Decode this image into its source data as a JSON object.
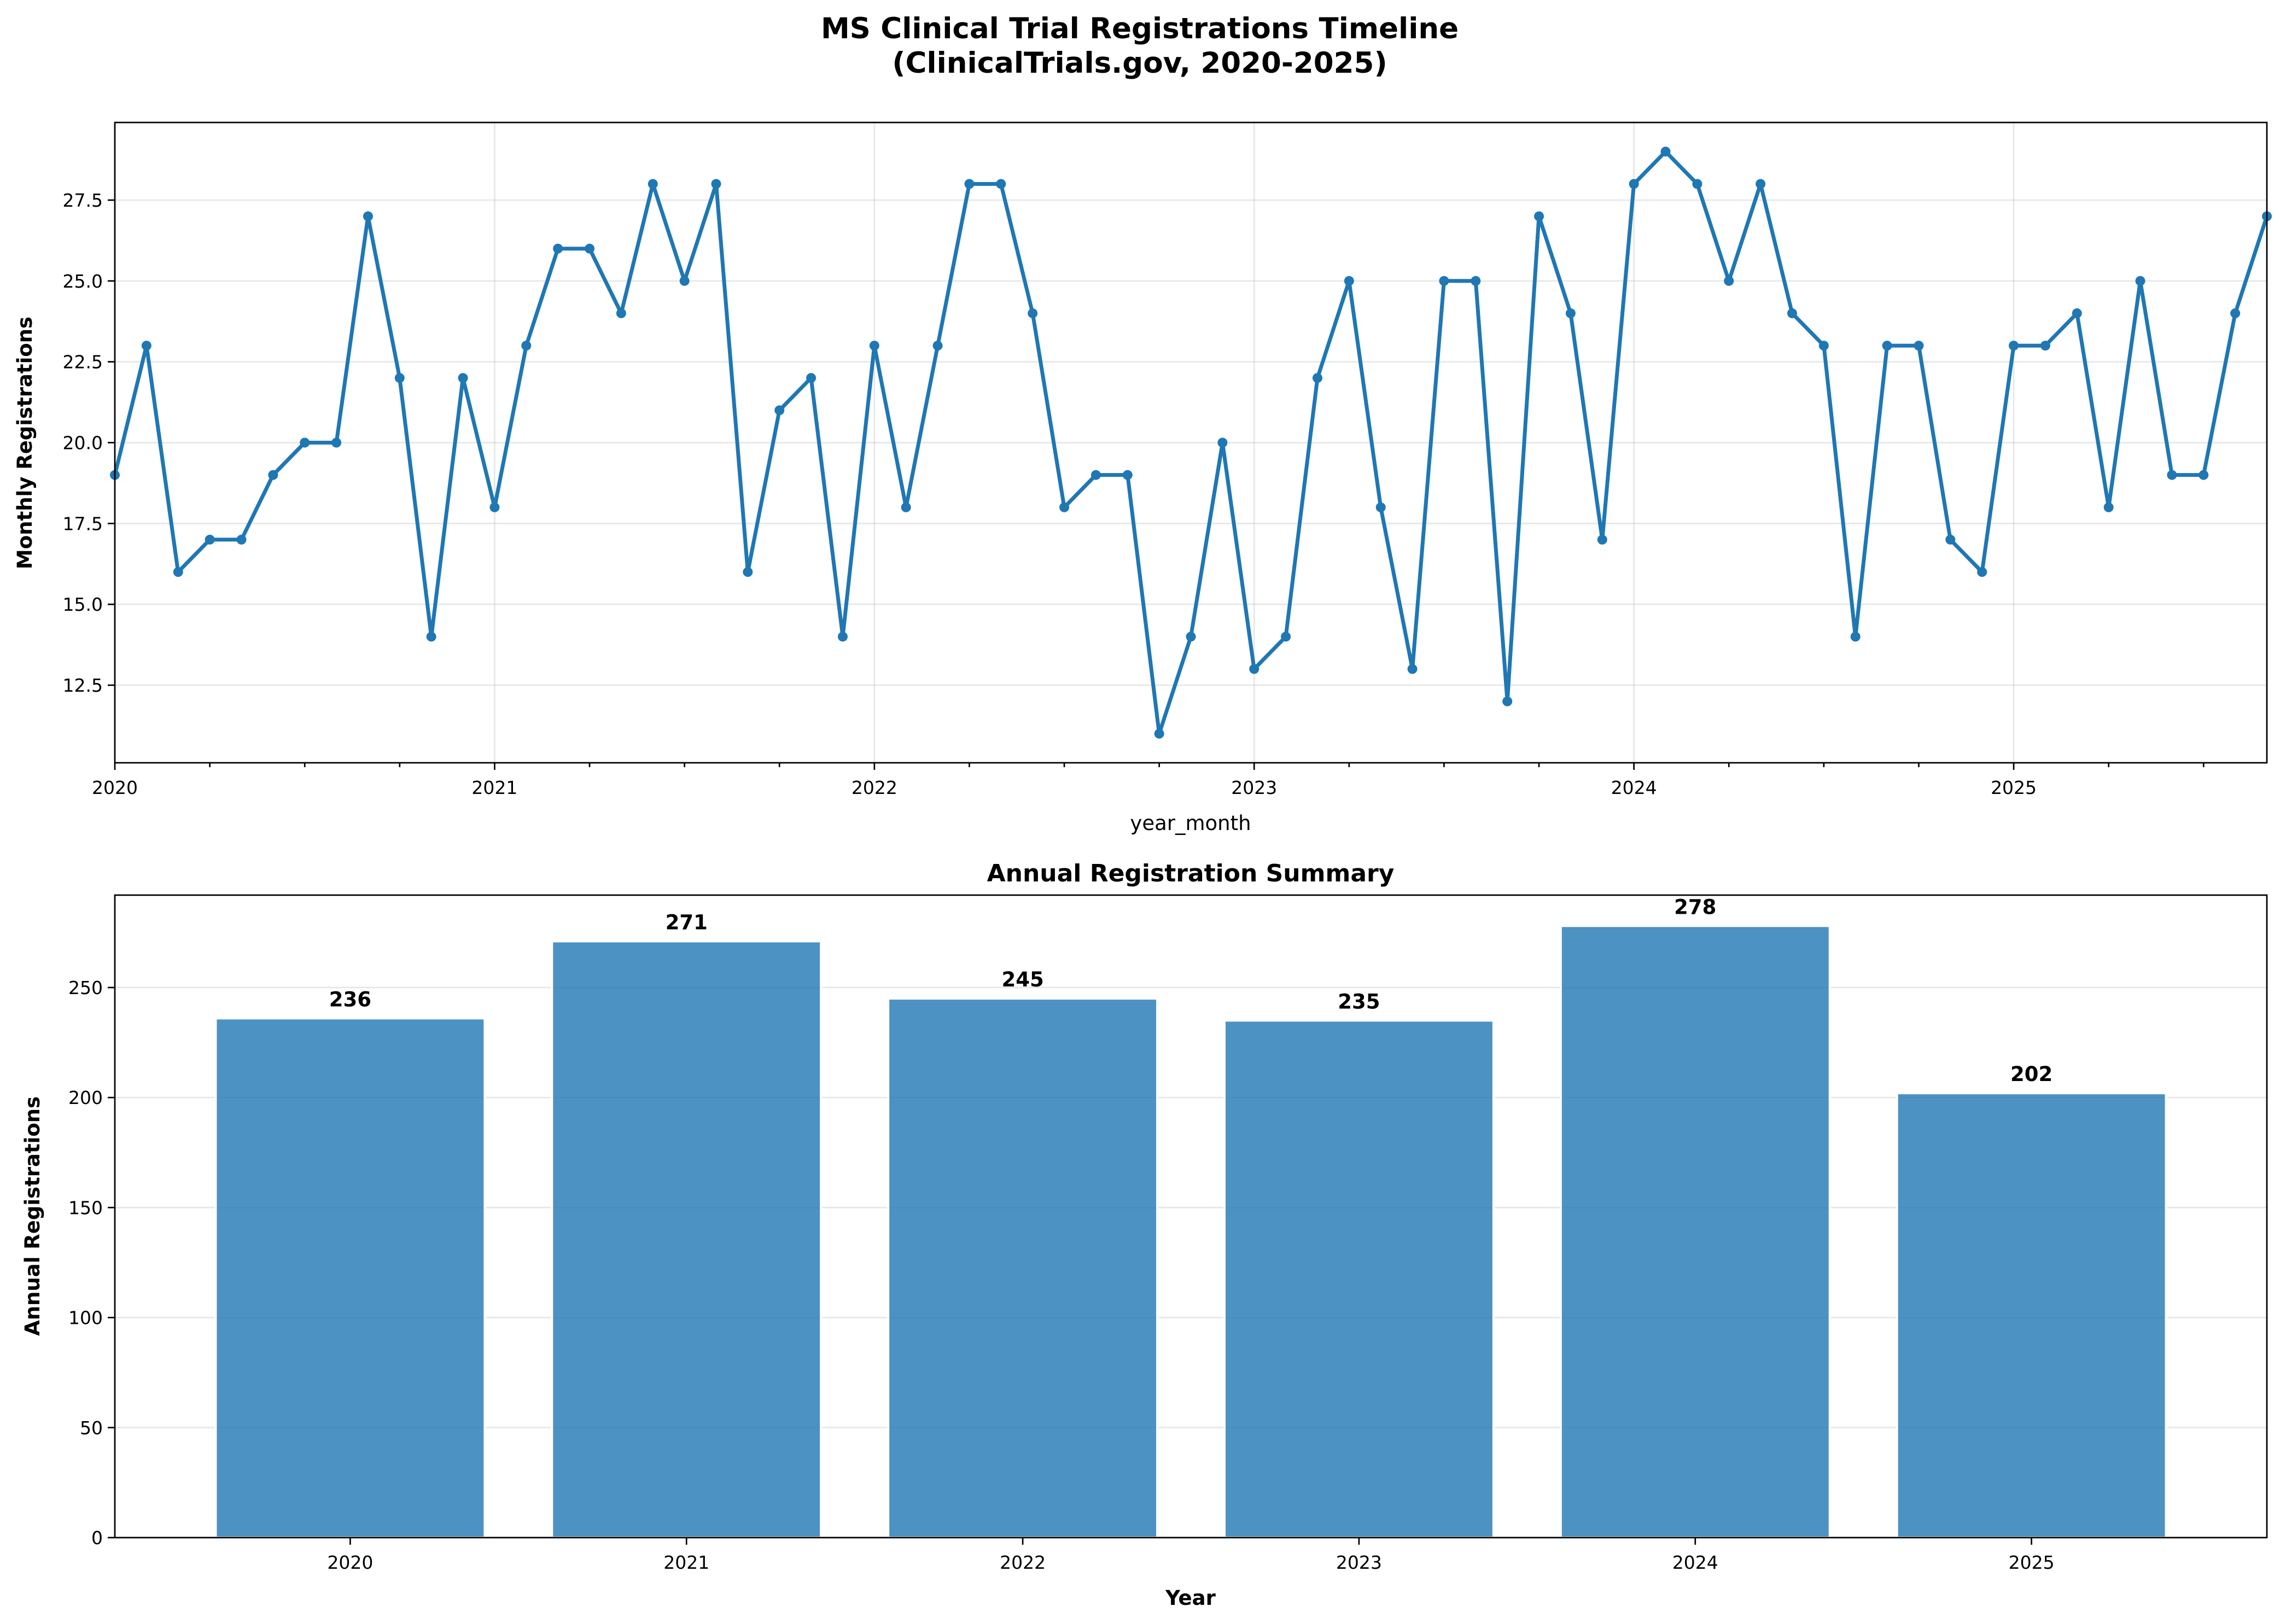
{
  "figure": {
    "title_line1": "MS Clinical Trial Registrations Timeline",
    "title_line2": "(ClinicalTrials.gov, 2020-2025)"
  },
  "chart_data": [
    {
      "type": "line",
      "title": "",
      "xlabel": "year_month",
      "ylabel": "Monthly Registrations",
      "x_start": "2020-01",
      "x_end": "2025-09",
      "xlim": [
        "2020-01",
        "2025-09"
      ],
      "ylim": [
        10.1,
        29.9
      ],
      "x_ticks": [
        "2020",
        "2021",
        "2022",
        "2023",
        "2024",
        "2025"
      ],
      "y_ticks": [
        "12.5",
        "15.0",
        "17.5",
        "20.0",
        "22.5",
        "25.0",
        "27.5"
      ],
      "grid": true,
      "color": "#1f77b4",
      "values": [
        19,
        23,
        16,
        17,
        17,
        19,
        20,
        20,
        27,
        22,
        14,
        22,
        18,
        23,
        26,
        26,
        24,
        28,
        25,
        28,
        16,
        21,
        22,
        14,
        23,
        18,
        23,
        28,
        28,
        24,
        18,
        19,
        19,
        11,
        14,
        20,
        13,
        14,
        22,
        25,
        18,
        13,
        25,
        25,
        12,
        27,
        24,
        17,
        28,
        29,
        28,
        25,
        28,
        24,
        23,
        14,
        23,
        23,
        17,
        16,
        23,
        23,
        24,
        18,
        25,
        19,
        19,
        24,
        27
      ]
    },
    {
      "type": "bar",
      "title": "Annual Registration Summary",
      "xlabel": "Year",
      "ylabel": "Annual Registrations",
      "categories": [
        "2020",
        "2021",
        "2022",
        "2023",
        "2024",
        "2025"
      ],
      "values": [
        236,
        271,
        245,
        235,
        278,
        202
      ],
      "data_labels": [
        "236",
        "271",
        "245",
        "235",
        "278",
        "202"
      ],
      "ylim": [
        0,
        292
      ],
      "y_ticks": [
        "0",
        "50",
        "100",
        "150",
        "200",
        "250"
      ],
      "grid": true,
      "color": "#1f77b4"
    }
  ]
}
